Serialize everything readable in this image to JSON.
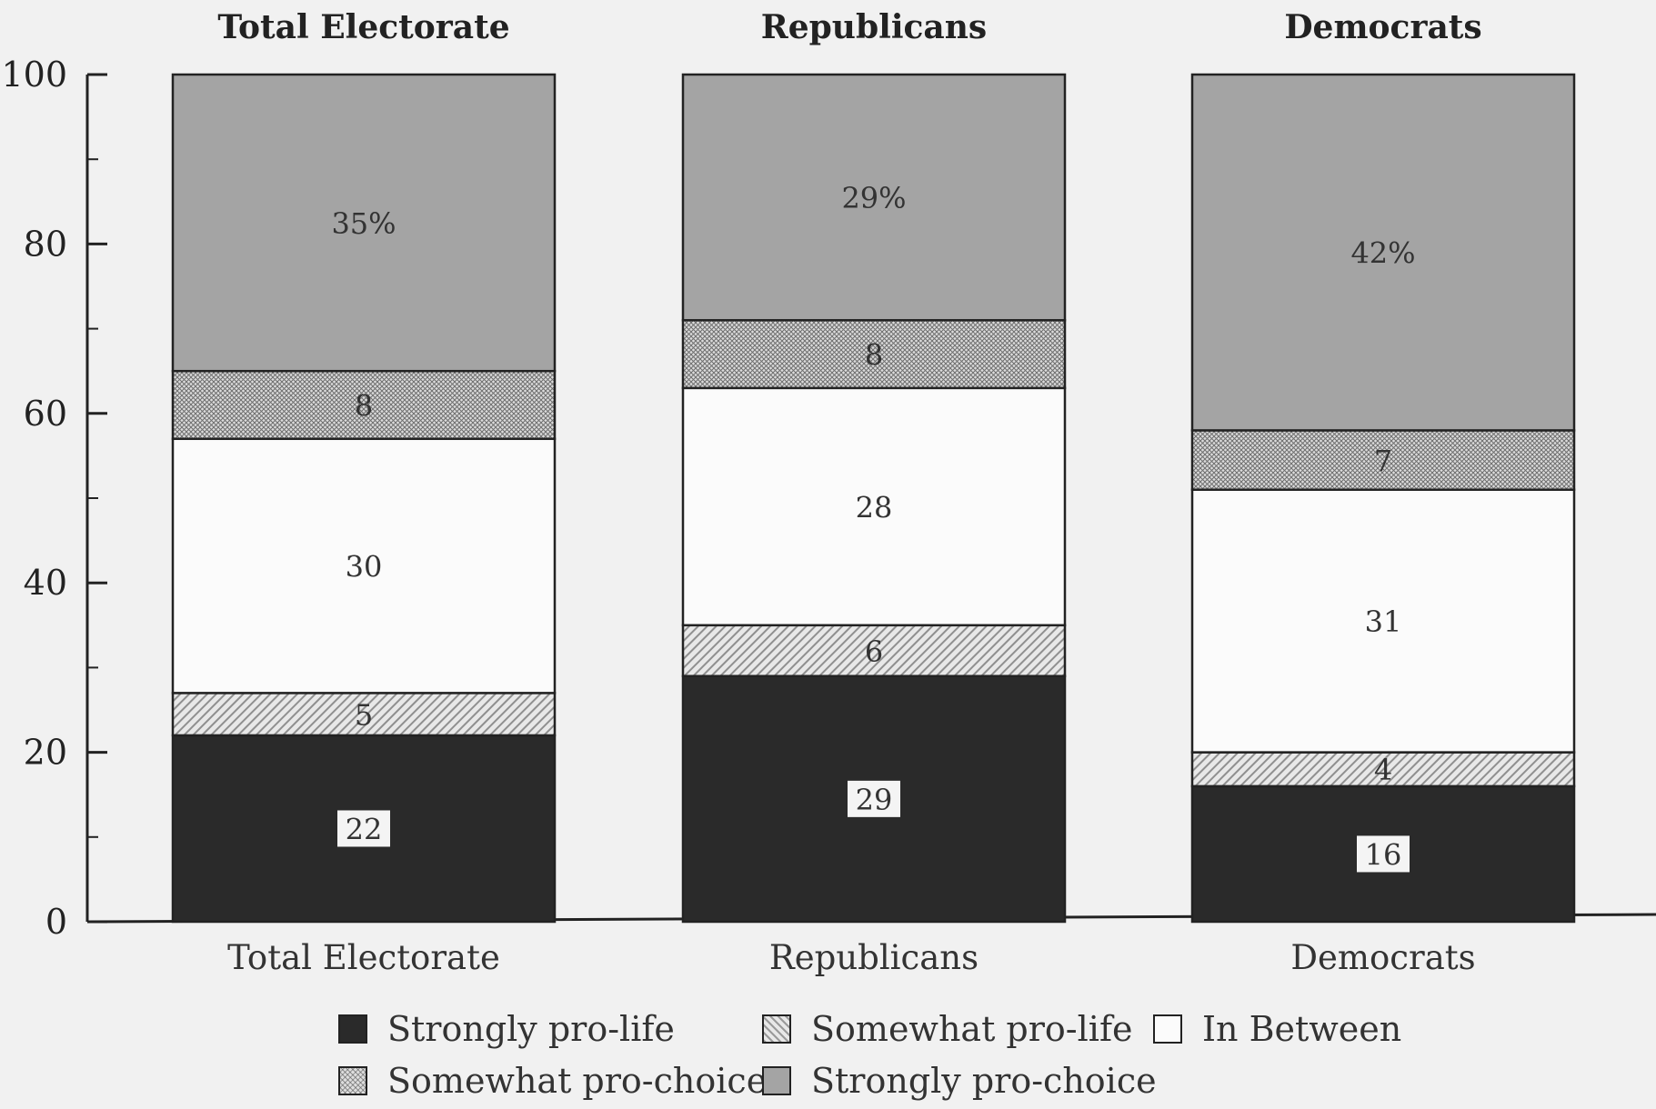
{
  "chart_data": {
    "type": "bar",
    "stacked": true,
    "titles": [
      "Total Electorate",
      "Republicans",
      "Democrats"
    ],
    "categories": [
      "Total Electorate",
      "Republicans",
      "Democrats"
    ],
    "ylim": [
      0,
      100
    ],
    "yticks": [
      "0",
      "20",
      "40",
      "60",
      "80",
      "100"
    ],
    "grid": false,
    "legend_placement": "bottom",
    "series": [
      {
        "name": "Strongly pro-life",
        "values": [
          22,
          29,
          16
        ],
        "labels": [
          "22",
          "29",
          "16"
        ],
        "color": "#2a2a2a"
      },
      {
        "name": "Somewhat pro-life",
        "values": [
          5,
          6,
          4
        ],
        "labels": [
          "5",
          "6",
          "4"
        ],
        "color": "#cfcfcf"
      },
      {
        "name": "In Between",
        "values": [
          30,
          28,
          31
        ],
        "labels": [
          "30",
          "28",
          "31"
        ],
        "color": "#fbfbfb"
      },
      {
        "name": "Somewhat pro-choice",
        "values": [
          8,
          8,
          7
        ],
        "labels": [
          "8",
          "8",
          "7"
        ],
        "color": "#bdbdbd"
      },
      {
        "name": "Strongly pro-choice",
        "values": [
          35,
          29,
          42
        ],
        "labels": [
          "35%",
          "29%",
          "42%"
        ],
        "color": "#a4a4a4"
      }
    ]
  },
  "legend": {
    "strong_life": "Strongly pro-life",
    "some_life": "Somewhat pro-life",
    "between": "In Between",
    "some_choice": "Somewhat pro-choice",
    "strong_choice": "Strongly pro-choice"
  }
}
